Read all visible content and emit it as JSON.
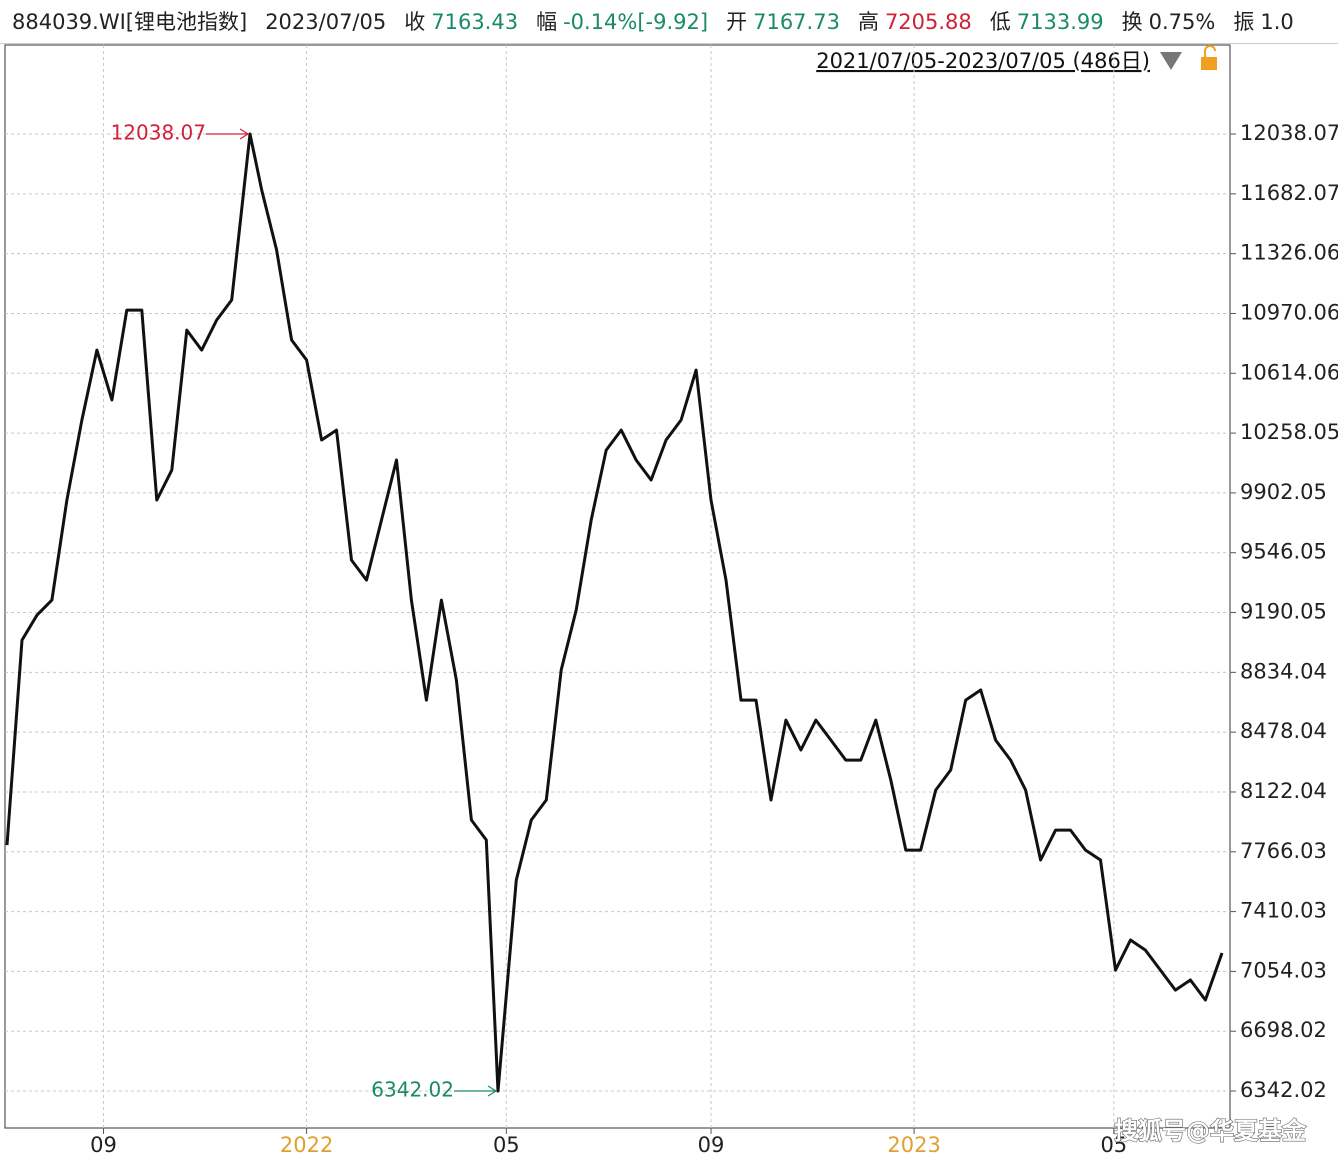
{
  "header": {
    "fields": [
      {
        "label": "884039.WI[锂电池指数]",
        "color": "#222222"
      },
      {
        "label": "2023/07/05",
        "color": "#222222"
      },
      {
        "label": "收",
        "value": "7163.43",
        "color": "#1a8a6a"
      },
      {
        "label": "幅",
        "value": "-0.14%[-9.92]",
        "color": "#1a8a6a"
      },
      {
        "label": "开",
        "value": "7167.73",
        "color": "#1a8a6a"
      },
      {
        "label": "高",
        "value": "7205.88",
        "color": "#d0203a"
      },
      {
        "label": "低",
        "value": "7133.99",
        "color": "#1a8a6a"
      },
      {
        "label": "换",
        "value": "0.75%",
        "color": "#222222"
      },
      {
        "label": "振",
        "value": "1.0",
        "color": "#222222"
      }
    ]
  },
  "chart_data": {
    "type": "line",
    "range_label": "2021/07/05-2023/07/05 (486日)",
    "watermark": "搜狐号@华夏基金",
    "x": [
      "2021/07/05",
      "2021/07/14",
      "2021/07/23",
      "2021/08/01",
      "2021/08/10",
      "2021/08/19",
      "2021/08/28",
      "2021/09/06",
      "2021/09/15",
      "2021/09/24",
      "2021/10/03",
      "2021/10/12",
      "2021/10/21",
      "2021/10/30",
      "2021/11/08",
      "2021/11/17",
      "2021/11/28",
      "2021/12/05",
      "2021/12/14",
      "2021/12/23",
      "2022/01/01",
      "2022/01/10",
      "2022/01/19",
      "2022/01/28",
      "2022/02/06",
      "2022/02/15",
      "2022/02/24",
      "2022/03/05",
      "2022/03/14",
      "2022/03/23",
      "2022/04/01",
      "2022/04/10",
      "2022/04/19",
      "2022/04/26",
      "2022/05/07",
      "2022/05/16",
      "2022/05/25",
      "2022/06/03",
      "2022/06/12",
      "2022/06/21",
      "2022/06/30",
      "2022/07/09",
      "2022/07/18",
      "2022/07/27",
      "2022/08/05",
      "2022/08/14",
      "2022/08/23",
      "2022/09/01",
      "2022/09/10",
      "2022/09/19",
      "2022/09/28",
      "2022/10/07",
      "2022/10/16",
      "2022/10/25",
      "2022/11/03",
      "2022/11/12",
      "2022/11/21",
      "2022/11/30",
      "2022/12/09",
      "2022/12/18",
      "2022/12/27",
      "2023/01/05",
      "2023/01/14",
      "2023/01/23",
      "2023/02/01",
      "2023/02/10",
      "2023/02/19",
      "2023/02/28",
      "2023/03/09",
      "2023/03/18",
      "2023/03/27",
      "2023/04/05",
      "2023/04/14",
      "2023/04/23",
      "2023/05/02",
      "2023/05/11",
      "2023/05/20",
      "2023/05/29",
      "2023/06/07",
      "2023/06/16",
      "2023/06/25",
      "2023/07/05"
    ],
    "series": [
      {
        "color": "#111111",
        "values": [
          7806,
          9026,
          9175,
          9264,
          9860,
          10336,
          10752,
          10455,
          10990,
          10990,
          9860,
          10038,
          10871,
          10752,
          10931,
          11050,
          12038.07,
          11705,
          11348,
          10812,
          10693,
          10217,
          10276,
          9502,
          9383,
          9741,
          10098,
          9264,
          8669,
          9264,
          8788,
          7955,
          7836,
          6342.02,
          7598,
          7955,
          8074,
          8848,
          9205,
          9741,
          10157,
          10276,
          10098,
          9979,
          10217,
          10336,
          10633,
          9860,
          9383,
          8669,
          8669,
          8074,
          8550,
          8372,
          8550,
          8431,
          8312,
          8312,
          8550,
          8193,
          7776,
          7776,
          8133,
          8253,
          8669,
          8729,
          8431,
          8312,
          8133,
          7717,
          7895,
          7895,
          7776,
          7717,
          7062,
          7241,
          7181,
          7062,
          6943,
          7003,
          6884,
          7163.43
        ]
      }
    ],
    "annotations": [
      {
        "index": 16,
        "color": "#d0203a",
        "side": "left"
      },
      {
        "index": 33,
        "color": "#1a8a6a",
        "side": "left"
      }
    ],
    "xlim": [
      "2021/07/05",
      "2023/07/05"
    ],
    "xticks": [
      {
        "value": "2021/09/01",
        "label": "09",
        "color": "#222222"
      },
      {
        "value": "2022/01/01",
        "label": "2022",
        "color": "#e0a030"
      },
      {
        "value": "2022/05/01",
        "label": "05",
        "color": "#222222"
      },
      {
        "value": "2022/09/01",
        "label": "09",
        "color": "#222222"
      },
      {
        "value": "2023/01/01",
        "label": "2023",
        "color": "#e0a030"
      },
      {
        "value": "2023/05/01",
        "label": "05",
        "color": "#222222"
      }
    ],
    "ylim": [
      6122,
      12568
    ],
    "yticks": [
      6342.02,
      6698.02,
      7054.03,
      7410.03,
      7766.03,
      8122.04,
      8478.04,
      8834.04,
      9190.05,
      9546.05,
      9902.05,
      10258.05,
      10614.06,
      10970.06,
      11326.06,
      11682.07,
      12038.07
    ],
    "grid": true
  }
}
